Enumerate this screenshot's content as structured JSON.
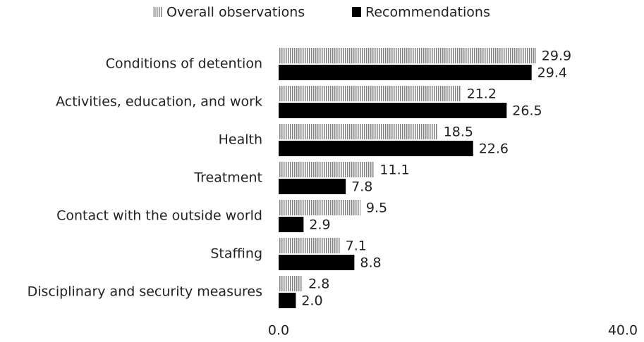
{
  "chart_data": {
    "type": "barh",
    "categories": [
      "Conditions of detention",
      "Activities, education, and work",
      "Health",
      "Treatment",
      "Contact with the outside world",
      "Staffing",
      "Disciplinary and security measures"
    ],
    "series": [
      {
        "name": "Overall observations",
        "color": "#808080",
        "pattern": "vertical-hatch",
        "values": [
          29.9,
          21.2,
          18.5,
          11.1,
          9.5,
          7.1,
          2.8
        ],
        "value_labels": [
          "29.9",
          "21.2",
          "18.5",
          "11.1",
          "9.5",
          "7.1",
          "2.8"
        ]
      },
      {
        "name": "Recommendations",
        "color": "#000000",
        "values": [
          29.4,
          26.5,
          22.6,
          7.8,
          2.9,
          8.8,
          2.0
        ],
        "value_labels": [
          "29.4",
          "26.5",
          "22.6",
          "7.8",
          "2.9",
          "8.8",
          "2.0"
        ]
      }
    ],
    "xlim": [
      0,
      40
    ],
    "xticks": [
      {
        "value": 0,
        "label": "0.0"
      },
      {
        "value": 40,
        "label": "40.0"
      }
    ],
    "legend": "top"
  }
}
